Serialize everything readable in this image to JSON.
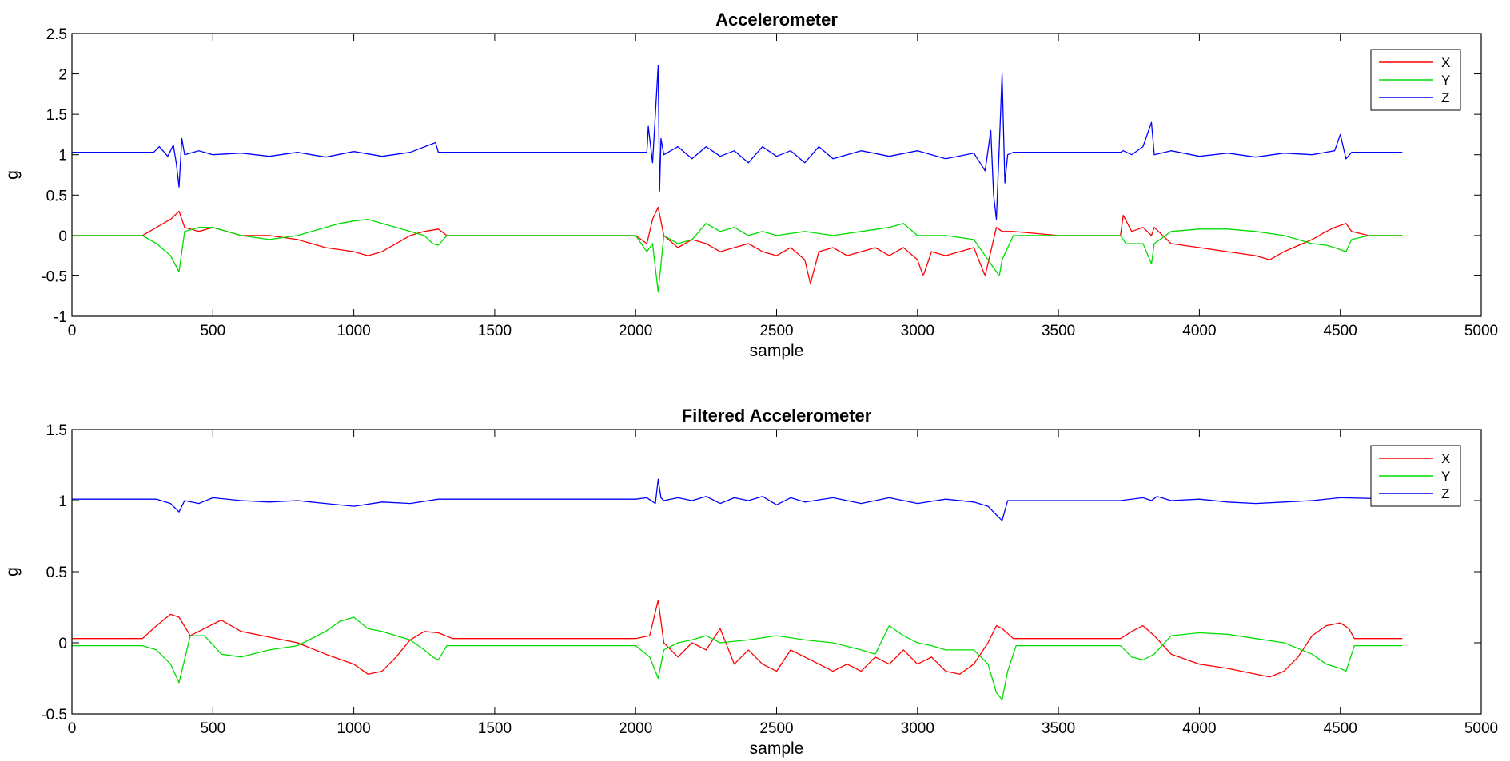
{
  "chart_data": [
    {
      "type": "line",
      "title": "Accelerometer",
      "xlabel": "sample",
      "ylabel": "g",
      "xlim": [
        0,
        5000
      ],
      "ylim": [
        -1,
        2.5
      ],
      "xticks": [
        0,
        500,
        1000,
        1500,
        2000,
        2500,
        3000,
        3500,
        4000,
        4500,
        5000
      ],
      "yticks": [
        -1,
        -0.5,
        0,
        0.5,
        1,
        1.5,
        2,
        2.5
      ],
      "legend_position": "top-right",
      "series": [
        {
          "name": "X",
          "color": "#ff0000",
          "x": [
            0,
            250,
            300,
            350,
            380,
            400,
            450,
            500,
            600,
            700,
            800,
            900,
            1000,
            1050,
            1100,
            1200,
            1250,
            1300,
            1330,
            1500,
            2000,
            2040,
            2060,
            2080,
            2100,
            2150,
            2200,
            2250,
            2300,
            2350,
            2400,
            2450,
            2500,
            2550,
            2600,
            2620,
            2650,
            2700,
            2750,
            2800,
            2850,
            2900,
            2950,
            3000,
            3020,
            3050,
            3100,
            3150,
            3200,
            3240,
            3280,
            3300,
            3340,
            3500,
            3720,
            3730,
            3760,
            3800,
            3830,
            3840,
            3900,
            4000,
            4100,
            4200,
            4250,
            4300,
            4400,
            4450,
            4480,
            4520,
            4540,
            4600,
            4720
          ],
          "y": [
            0.0,
            0.0,
            0.1,
            0.2,
            0.3,
            0.1,
            0.05,
            0.1,
            0.0,
            0.0,
            -0.05,
            -0.15,
            -0.2,
            -0.25,
            -0.2,
            0.0,
            0.05,
            0.08,
            0.0,
            0.0,
            0.0,
            -0.1,
            0.2,
            0.35,
            0.0,
            -0.15,
            -0.05,
            -0.1,
            -0.2,
            -0.15,
            -0.1,
            -0.2,
            -0.25,
            -0.15,
            -0.3,
            -0.6,
            -0.2,
            -0.15,
            -0.25,
            -0.2,
            -0.15,
            -0.25,
            -0.15,
            -0.3,
            -0.5,
            -0.2,
            -0.25,
            -0.2,
            -0.15,
            -0.5,
            0.1,
            0.05,
            0.05,
            0.0,
            0.0,
            0.25,
            0.05,
            0.1,
            0.0,
            0.1,
            -0.1,
            -0.15,
            -0.2,
            -0.25,
            -0.3,
            -0.2,
            -0.05,
            0.05,
            0.1,
            0.15,
            0.05,
            0.0,
            0.0
          ]
        },
        {
          "name": "Y",
          "color": "#00dd00",
          "x": [
            0,
            250,
            300,
            350,
            380,
            400,
            450,
            500,
            600,
            700,
            800,
            900,
            950,
            1000,
            1050,
            1100,
            1200,
            1250,
            1280,
            1300,
            1330,
            1500,
            2000,
            2040,
            2060,
            2080,
            2100,
            2150,
            2200,
            2250,
            2300,
            2350,
            2400,
            2450,
            2500,
            2600,
            2700,
            2800,
            2900,
            2950,
            3000,
            3100,
            3200,
            3250,
            3290,
            3300,
            3340,
            3500,
            3720,
            3740,
            3800,
            3830,
            3840,
            3900,
            4000,
            4100,
            4200,
            4300,
            4400,
            4450,
            4480,
            4520,
            4540,
            4600,
            4720
          ],
          "y": [
            0.0,
            0.0,
            -0.1,
            -0.25,
            -0.45,
            0.05,
            0.1,
            0.1,
            0.0,
            -0.05,
            0.0,
            0.1,
            0.15,
            0.18,
            0.2,
            0.15,
            0.05,
            0.0,
            -0.1,
            -0.12,
            0.0,
            0.0,
            0.0,
            -0.2,
            -0.1,
            -0.7,
            0.0,
            -0.1,
            -0.05,
            0.15,
            0.05,
            0.1,
            0.0,
            0.05,
            0.0,
            0.05,
            0.0,
            0.05,
            0.1,
            0.15,
            0.0,
            0.0,
            -0.05,
            -0.3,
            -0.5,
            -0.3,
            0.0,
            0.0,
            0.0,
            -0.1,
            -0.1,
            -0.35,
            -0.1,
            0.05,
            0.08,
            0.08,
            0.05,
            0.0,
            -0.1,
            -0.12,
            -0.15,
            -0.2,
            -0.05,
            0.0,
            0.0
          ]
        },
        {
          "name": "Z",
          "color": "#0000ff",
          "x": [
            0,
            290,
            310,
            340,
            360,
            370,
            380,
            390,
            400,
            450,
            500,
            600,
            700,
            800,
            900,
            1000,
            1100,
            1200,
            1290,
            1300,
            1330,
            1500,
            2000,
            2040,
            2045,
            2060,
            2080,
            2085,
            2090,
            2100,
            2150,
            2200,
            2250,
            2300,
            2350,
            2400,
            2450,
            2500,
            2550,
            2600,
            2650,
            2700,
            2800,
            2900,
            3000,
            3100,
            3200,
            3240,
            3260,
            3270,
            3280,
            3290,
            3300,
            3310,
            3320,
            3340,
            3500,
            3720,
            3730,
            3760,
            3800,
            3830,
            3840,
            3900,
            4000,
            4100,
            4200,
            4300,
            4400,
            4480,
            4500,
            4520,
            4540,
            4720
          ],
          "y": [
            1.03,
            1.03,
            1.1,
            0.98,
            1.12,
            0.9,
            0.6,
            1.2,
            1.0,
            1.05,
            1.0,
            1.02,
            0.98,
            1.03,
            0.97,
            1.04,
            0.98,
            1.03,
            1.15,
            1.03,
            1.03,
            1.03,
            1.03,
            1.03,
            1.35,
            0.9,
            2.1,
            0.55,
            1.2,
            1.0,
            1.1,
            0.95,
            1.1,
            0.98,
            1.05,
            0.9,
            1.1,
            0.98,
            1.05,
            0.9,
            1.1,
            0.95,
            1.05,
            0.98,
            1.05,
            0.95,
            1.02,
            0.8,
            1.3,
            0.5,
            0.2,
            1.1,
            2.0,
            0.65,
            1.0,
            1.03,
            1.03,
            1.03,
            1.05,
            1.0,
            1.1,
            1.4,
            1.0,
            1.05,
            0.98,
            1.02,
            0.97,
            1.02,
            1.0,
            1.05,
            1.25,
            0.95,
            1.03,
            1.03
          ]
        }
      ]
    },
    {
      "type": "line",
      "title": "Filtered Accelerometer",
      "xlabel": "sample",
      "ylabel": "g",
      "xlim": [
        0,
        5000
      ],
      "ylim": [
        -0.5,
        1.5
      ],
      "xticks": [
        0,
        500,
        1000,
        1500,
        2000,
        2500,
        3000,
        3500,
        4000,
        4500,
        5000
      ],
      "yticks": [
        -0.5,
        0,
        0.5,
        1,
        1.5
      ],
      "legend_position": "top-right",
      "series": [
        {
          "name": "X",
          "color": "#ff0000",
          "x": [
            0,
            250,
            300,
            350,
            380,
            420,
            470,
            530,
            600,
            700,
            800,
            900,
            1000,
            1050,
            1100,
            1150,
            1200,
            1250,
            1300,
            1350,
            1500,
            2000,
            2050,
            2080,
            2100,
            2150,
            2200,
            2250,
            2300,
            2350,
            2400,
            2450,
            2500,
            2550,
            2600,
            2650,
            2700,
            2750,
            2800,
            2850,
            2900,
            2950,
            3000,
            3050,
            3100,
            3150,
            3200,
            3250,
            3280,
            3300,
            3340,
            3500,
            3720,
            3760,
            3800,
            3840,
            3900,
            4000,
            4100,
            4200,
            4250,
            4300,
            4350,
            4400,
            4450,
            4500,
            4530,
            4550,
            4720
          ],
          "y": [
            0.03,
            0.03,
            0.12,
            0.2,
            0.18,
            0.05,
            0.1,
            0.16,
            0.08,
            0.04,
            0.0,
            -0.08,
            -0.15,
            -0.22,
            -0.2,
            -0.1,
            0.02,
            0.08,
            0.07,
            0.03,
            0.03,
            0.03,
            0.05,
            0.3,
            0.0,
            -0.1,
            0.0,
            -0.05,
            0.1,
            -0.15,
            -0.05,
            -0.15,
            -0.2,
            -0.05,
            -0.1,
            -0.15,
            -0.2,
            -0.15,
            -0.2,
            -0.1,
            -0.15,
            -0.05,
            -0.15,
            -0.1,
            -0.2,
            -0.22,
            -0.15,
            0.0,
            0.12,
            0.1,
            0.03,
            0.03,
            0.03,
            0.08,
            0.12,
            0.05,
            -0.08,
            -0.15,
            -0.18,
            -0.22,
            -0.24,
            -0.2,
            -0.1,
            0.05,
            0.12,
            0.14,
            0.1,
            0.03,
            0.03
          ]
        },
        {
          "name": "Y",
          "color": "#00dd00",
          "x": [
            0,
            250,
            300,
            350,
            380,
            420,
            470,
            530,
            600,
            700,
            800,
            900,
            950,
            1000,
            1050,
            1100,
            1200,
            1250,
            1280,
            1300,
            1330,
            1500,
            2000,
            2050,
            2080,
            2100,
            2150,
            2200,
            2250,
            2300,
            2400,
            2500,
            2600,
            2700,
            2800,
            2850,
            2900,
            2950,
            3000,
            3050,
            3100,
            3200,
            3250,
            3280,
            3300,
            3320,
            3350,
            3500,
            3720,
            3760,
            3800,
            3840,
            3900,
            4000,
            4100,
            4200,
            4300,
            4400,
            4450,
            4500,
            4520,
            4550,
            4720
          ],
          "y": [
            -0.02,
            -0.02,
            -0.05,
            -0.15,
            -0.28,
            0.05,
            0.05,
            -0.08,
            -0.1,
            -0.05,
            -0.02,
            0.08,
            0.15,
            0.18,
            0.1,
            0.08,
            0.02,
            -0.05,
            -0.1,
            -0.12,
            -0.02,
            -0.02,
            -0.02,
            -0.1,
            -0.25,
            -0.05,
            0.0,
            0.02,
            0.05,
            0.0,
            0.02,
            0.05,
            0.02,
            0.0,
            -0.05,
            -0.08,
            0.12,
            0.05,
            0.0,
            -0.02,
            -0.05,
            -0.05,
            -0.15,
            -0.35,
            -0.4,
            -0.2,
            -0.02,
            -0.02,
            -0.02,
            -0.1,
            -0.12,
            -0.08,
            0.05,
            0.07,
            0.06,
            0.03,
            0.0,
            -0.08,
            -0.15,
            -0.18,
            -0.2,
            -0.02,
            -0.02
          ]
        },
        {
          "name": "Z",
          "color": "#0000ff",
          "x": [
            0,
            250,
            300,
            350,
            380,
            400,
            450,
            500,
            600,
            700,
            800,
            900,
            1000,
            1100,
            1200,
            1300,
            1500,
            2000,
            2040,
            2070,
            2080,
            2090,
            2100,
            2150,
            2200,
            2250,
            2300,
            2350,
            2400,
            2450,
            2500,
            2550,
            2600,
            2700,
            2800,
            2900,
            3000,
            3100,
            3200,
            3250,
            3280,
            3300,
            3320,
            3340,
            3500,
            3720,
            3800,
            3830,
            3850,
            3900,
            4000,
            4100,
            4200,
            4300,
            4400,
            4500,
            4720
          ],
          "y": [
            1.01,
            1.01,
            1.01,
            0.98,
            0.92,
            1.0,
            0.98,
            1.02,
            1.0,
            0.99,
            1.0,
            0.98,
            0.96,
            0.99,
            0.98,
            1.01,
            1.01,
            1.01,
            1.02,
            0.98,
            1.15,
            1.02,
            1.0,
            1.02,
            1.0,
            1.03,
            0.98,
            1.02,
            1.0,
            1.03,
            0.97,
            1.02,
            0.99,
            1.02,
            0.98,
            1.02,
            0.98,
            1.01,
            0.99,
            0.96,
            0.9,
            0.86,
            1.0,
            1.0,
            1.0,
            1.0,
            1.02,
            1.0,
            1.03,
            1.0,
            1.01,
            0.99,
            0.98,
            0.99,
            1.0,
            1.02,
            1.01
          ]
        }
      ]
    }
  ]
}
